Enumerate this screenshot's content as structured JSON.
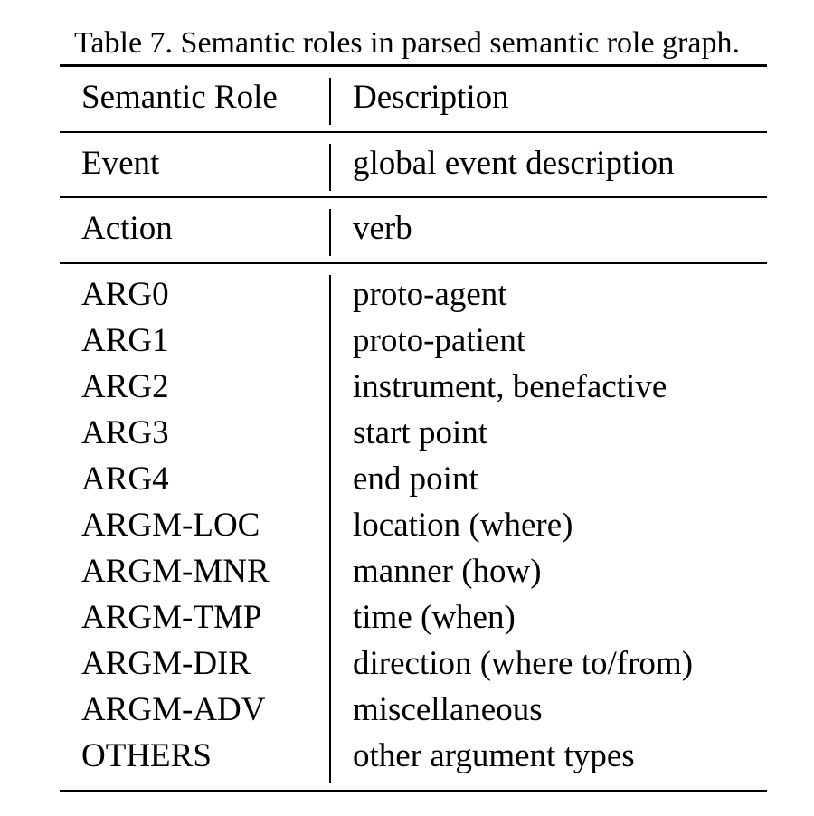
{
  "caption": "Table 7. Semantic roles in parsed semantic role graph.",
  "table": {
    "headers": [
      "Semantic Role",
      "Description"
    ],
    "groups": [
      [
        {
          "role": "Event",
          "description": "global event description"
        }
      ],
      [
        {
          "role": "Action",
          "description": "verb"
        }
      ],
      [
        {
          "role": "ARG0",
          "description": "proto-agent"
        },
        {
          "role": "ARG1",
          "description": "proto-patient"
        },
        {
          "role": "ARG2",
          "description": "instrument, benefactive"
        },
        {
          "role": "ARG3",
          "description": "start point"
        },
        {
          "role": "ARG4",
          "description": "end point"
        },
        {
          "role": "ARGM-LOC",
          "description": "location (where)"
        },
        {
          "role": "ARGM-MNR",
          "description": "manner (how)"
        },
        {
          "role": "ARGM-TMP",
          "description": "time (when)"
        },
        {
          "role": "ARGM-DIR",
          "description": "direction (where to/from)"
        },
        {
          "role": "ARGM-ADV",
          "description": "miscellaneous"
        },
        {
          "role": "OTHERS",
          "description": "other argument types"
        }
      ]
    ]
  }
}
